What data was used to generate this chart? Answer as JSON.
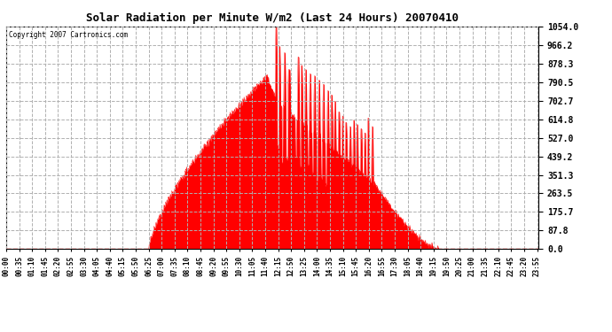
{
  "title": "Solar Radiation per Minute W/m2 (Last 24 Hours) 20070410",
  "copyright_text": "Copyright 2007 Cartronics.com",
  "background_color": "#ffffff",
  "plot_bg_color": "#ffffff",
  "grid_color": "#b0b0b0",
  "fill_color": "#ff0000",
  "line_color": "#ff0000",
  "dashed_line_color": "#ff0000",
  "y_ticks": [
    0.0,
    87.8,
    175.7,
    263.5,
    351.3,
    439.2,
    527.0,
    614.8,
    702.7,
    790.5,
    878.3,
    966.2,
    1054.0
  ],
  "ylim": [
    0.0,
    1054.0
  ],
  "x_tick_labels": [
    "00:00",
    "00:35",
    "01:10",
    "01:45",
    "02:20",
    "02:55",
    "03:30",
    "04:05",
    "04:40",
    "05:15",
    "05:50",
    "06:25",
    "07:00",
    "07:35",
    "08:10",
    "08:45",
    "09:20",
    "09:55",
    "10:30",
    "11:05",
    "11:40",
    "12:15",
    "12:50",
    "13:25",
    "14:00",
    "14:35",
    "15:10",
    "15:45",
    "16:20",
    "16:55",
    "17:30",
    "18:05",
    "18:40",
    "19:15",
    "19:50",
    "20:25",
    "21:00",
    "21:35",
    "22:10",
    "22:45",
    "23:20",
    "23:55"
  ],
  "num_points": 1440,
  "rise_hour": 6.42,
  "set_hour": 19.5,
  "peak_hour": 11.75,
  "peak_val": 820
}
